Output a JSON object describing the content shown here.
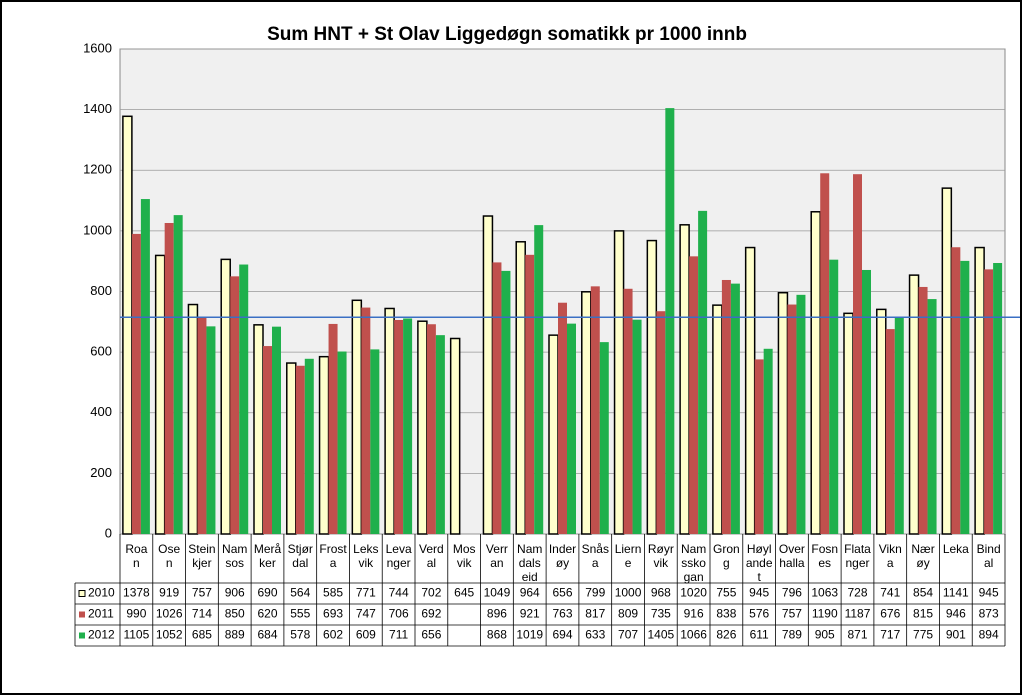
{
  "chart_data": {
    "type": "bar",
    "title": "Sum HNT + St Olav Liggedøgn somatikk pr 1000 innb",
    "categories": [
      "Roa\nn",
      "Ose\nn",
      "Stein\nkjer",
      "Nam\nsos",
      "Merå\nker",
      "Stjør\ndal",
      "Frost\na",
      "Leks\nvik",
      "Leva\nnger",
      "Verd\nal",
      "Mos\nvik",
      "Verr\nan",
      "Nam\ndals\neid",
      "Inder\nøy",
      "Snås\na",
      "Liern\ne",
      "Røyr\nvik",
      "Nam\nssko\ngan",
      "Gron\ng",
      "Høyl\nande\nt",
      "Over\nhalla",
      "Fosn\nes",
      "Flata\nnger",
      "Vikn\na",
      "Nær\nøy",
      "Leka",
      "Bind\nal"
    ],
    "series": [
      {
        "name": "2010",
        "color": "#ffffcc",
        "values": [
          1378,
          919,
          757,
          906,
          690,
          564,
          585,
          771,
          744,
          702,
          645,
          1049,
          964,
          656,
          799,
          1000,
          968,
          1020,
          755,
          945,
          796,
          1063,
          728,
          741,
          854,
          1141,
          945
        ]
      },
      {
        "name": "2011",
        "color": "#c0504d",
        "values": [
          990,
          1026,
          714,
          850,
          620,
          555,
          693,
          747,
          706,
          692,
          null,
          896,
          921,
          763,
          817,
          809,
          735,
          916,
          838,
          576,
          757,
          1190,
          1187,
          676,
          815,
          946,
          873
        ]
      },
      {
        "name": "2012",
        "color": "#1fb04c",
        "values": [
          1105,
          1052,
          685,
          889,
          684,
          578,
          602,
          609,
          711,
          656,
          null,
          868,
          1019,
          694,
          633,
          707,
          1405,
          1066,
          826,
          611,
          789,
          905,
          871,
          717,
          775,
          901,
          894
        ]
      }
    ],
    "ylim": [
      0,
      1600
    ],
    "yticks": [
      0,
      200,
      400,
      600,
      800,
      1000,
      1200,
      1400,
      1600
    ],
    "grid": true,
    "reference_line": 715,
    "reference_color": "#3a6fc4"
  }
}
